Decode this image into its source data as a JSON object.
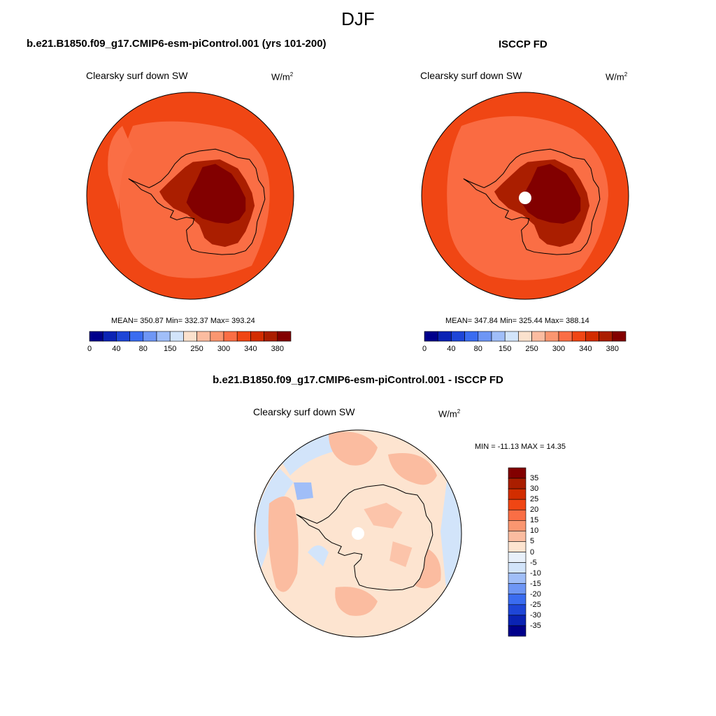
{
  "page_title": "DJF",
  "colors": {
    "abs_levels": [
      "#00008b",
      "#0a23b4",
      "#1e46d7",
      "#3a6cf0",
      "#6e96f5",
      "#a0bef8",
      "#d2e4fa",
      "#fbe1cd",
      "#fbbca0",
      "#fa9670",
      "#fa6e45",
      "#f04614",
      "#d22d00",
      "#aa1e00",
      "#820000"
    ],
    "diff_levels": [
      "#00008b",
      "#0a23b4",
      "#1e46d7",
      "#3a6cf0",
      "#6e96f5",
      "#a0bef8",
      "#d2e4fa",
      "#e8f0fa",
      "#fde4d0",
      "#fbbca0",
      "#fa9670",
      "#fa6e45",
      "#f04614",
      "#d22d00",
      "#aa1e00",
      "#820000"
    ]
  },
  "panels": [
    {
      "case_title": "b.e21.B1850.f09_g17.CMIP6-esm-piControl.001 (yrs 101-200)",
      "variable": "Clearsky surf down SW",
      "units": "W/m",
      "units_sup": "2",
      "stats": "MEAN= 350.87  Min= 332.37  Max= 393.24",
      "colorbar_labels": [
        "0",
        "40",
        "80",
        "150",
        "250",
        "300",
        "340",
        "380"
      ]
    },
    {
      "case_title": "ISCCP FD",
      "variable": "Clearsky surf down SW",
      "units": "W/m",
      "units_sup": "2",
      "stats": "MEAN= 347.84  Min= 325.44  Max= 388.14",
      "colorbar_labels": [
        "0",
        "40",
        "80",
        "150",
        "250",
        "300",
        "340",
        "380"
      ]
    }
  ],
  "diff_panel": {
    "case_title": "b.e21.B1850.f09_g17.CMIP6-esm-piControl.001 - ISCCP FD",
    "variable": "Clearsky surf down SW",
    "units": "W/m",
    "units_sup": "2",
    "stats": "MIN = -11.13 MAX =  14.35",
    "colorbar_labels": [
      "35",
      "30",
      "25",
      "20",
      "15",
      "10",
      "5",
      "0",
      "-5",
      "-10",
      "-15",
      "-20",
      "-25",
      "-30",
      "-35"
    ]
  },
  "chart_data": [
    {
      "type": "heatmap",
      "projection": "south polar stereographic",
      "title": "b.e21.B1850.f09_g17.CMIP6-esm-piControl.001 (yrs 101-200)",
      "variable": "Clearsky surf down SW",
      "units": "W/m2",
      "mean": 350.87,
      "min": 332.37,
      "max": 393.24,
      "contour_levels": [
        0,
        20,
        40,
        60,
        80,
        100,
        150,
        200,
        250,
        275,
        300,
        320,
        340,
        360,
        380
      ]
    },
    {
      "type": "heatmap",
      "projection": "south polar stereographic",
      "title": "ISCCP FD",
      "variable": "Clearsky surf down SW",
      "units": "W/m2",
      "mean": 347.84,
      "min": 325.44,
      "max": 388.14,
      "contour_levels": [
        0,
        20,
        40,
        60,
        80,
        100,
        150,
        200,
        250,
        275,
        300,
        320,
        340,
        360,
        380
      ]
    },
    {
      "type": "heatmap",
      "projection": "south polar stereographic",
      "title": "b.e21.B1850.f09_g17.CMIP6-esm-piControl.001 - ISCCP FD",
      "variable": "Clearsky surf down SW",
      "units": "W/m2",
      "min": -11.13,
      "max": 14.35,
      "contour_levels": [
        -35,
        -30,
        -25,
        -20,
        -15,
        -10,
        -5,
        0,
        5,
        10,
        15,
        20,
        25,
        30,
        35
      ]
    }
  ]
}
